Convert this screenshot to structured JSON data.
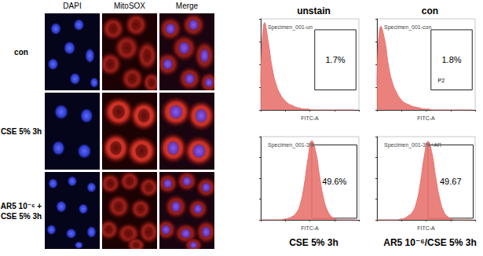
{
  "microscopy": {
    "columns": [
      "DAPI",
      "MitoSOX",
      "Merge"
    ],
    "rows": [
      [
        "con"
      ],
      [
        "CSE 5% 3h"
      ],
      [
        "AR5 10⁻⁶ +",
        "CSE 5% 3h"
      ]
    ]
  },
  "chart_data": [
    {
      "type": "area",
      "title": "unstain",
      "subtitle": "Specimen_001-un",
      "x_label": "FITC-A",
      "x": [
        0,
        4,
        8,
        12,
        16,
        20,
        24,
        28,
        32,
        36,
        40,
        44,
        48,
        52,
        56,
        60,
        64,
        68,
        72,
        76,
        80,
        84,
        88,
        92,
        96
      ],
      "values": [
        30,
        96,
        72,
        44,
        27,
        17,
        11,
        7,
        5,
        3,
        2,
        1,
        1,
        0,
        0,
        0,
        0,
        0,
        0,
        0,
        0,
        0,
        0,
        0,
        0
      ],
      "color": "#e8736f",
      "xlim": [
        0,
        100
      ],
      "ylim": [
        0,
        100
      ],
      "xticks": [
        0,
        25,
        50,
        75,
        100
      ],
      "yticks": [
        0,
        25,
        50,
        75,
        100
      ],
      "grid": false,
      "tick_labels": false,
      "gate": {
        "x": [
          55,
          97
        ],
        "y": [
          22,
          88
        ],
        "label": "1.7%"
      }
    },
    {
      "type": "area",
      "title": "con",
      "subtitle": "Specimen_001-con",
      "x_label": "FITC-A",
      "x": [
        0,
        4,
        8,
        12,
        16,
        20,
        24,
        28,
        32,
        36,
        40,
        44,
        48,
        52,
        56,
        60,
        64,
        68,
        72,
        76,
        80,
        84,
        88,
        92,
        96
      ],
      "values": [
        28,
        92,
        76,
        47,
        29,
        19,
        12,
        8,
        6,
        4,
        3,
        2,
        1,
        1,
        0,
        0,
        0,
        0,
        0,
        0,
        0,
        0,
        0,
        0,
        0
      ],
      "color": "#e8736f",
      "xlim": [
        0,
        100
      ],
      "ylim": [
        0,
        100
      ],
      "xticks": [
        0,
        25,
        50,
        75,
        100
      ],
      "yticks": [
        0,
        25,
        50,
        75,
        100
      ],
      "grid": false,
      "tick_labels": false,
      "gate": {
        "x": [
          55,
          97
        ],
        "y": [
          22,
          88
        ],
        "label": "1.8%",
        "name": "P2"
      }
    },
    {
      "type": "area",
      "title": "CSE 5% 3h",
      "subtitle": "Specimen_001-3%",
      "x_label": "FITC-A",
      "x": [
        0,
        4,
        8,
        12,
        16,
        20,
        24,
        28,
        32,
        36,
        40,
        44,
        48,
        52,
        56,
        60,
        64,
        68,
        72,
        76,
        80,
        84,
        88,
        92,
        96
      ],
      "values": [
        0,
        0,
        0,
        0,
        0,
        0,
        1,
        2,
        4,
        8,
        18,
        40,
        72,
        95,
        82,
        52,
        26,
        11,
        4,
        1,
        0,
        0,
        0,
        0,
        0
      ],
      "color": "#e8736f",
      "xlim": [
        0,
        100
      ],
      "ylim": [
        0,
        100
      ],
      "xticks": [
        0,
        25,
        50,
        75,
        100
      ],
      "yticks": [
        0,
        25,
        50,
        75,
        100
      ],
      "grid": false,
      "tick_labels": false,
      "gate": {
        "x": [
          52,
          98
        ],
        "y": [
          2,
          90
        ],
        "label": "49.6%"
      }
    },
    {
      "type": "area",
      "title": "AR5 10⁻⁶/CSE 5% 3h",
      "subtitle": "Specimen_001-3%+AR",
      "x_label": "FITC-A",
      "x": [
        0,
        4,
        8,
        12,
        16,
        20,
        24,
        28,
        32,
        36,
        40,
        44,
        48,
        52,
        56,
        60,
        64,
        68,
        72,
        76,
        80,
        84,
        88,
        92,
        96
      ],
      "values": [
        0,
        0,
        0,
        0,
        0,
        0,
        1,
        2,
        5,
        9,
        20,
        43,
        75,
        94,
        80,
        50,
        25,
        10,
        4,
        1,
        0,
        0,
        0,
        0,
        0
      ],
      "color": "#e8736f",
      "xlim": [
        0,
        100
      ],
      "ylim": [
        0,
        100
      ],
      "xticks": [
        0,
        25,
        50,
        75,
        100
      ],
      "yticks": [
        0,
        25,
        50,
        75,
        100
      ],
      "grid": false,
      "tick_labels": false,
      "gate": {
        "x": [
          52,
          98
        ],
        "y": [
          2,
          90
        ],
        "label": "49.67"
      }
    }
  ]
}
